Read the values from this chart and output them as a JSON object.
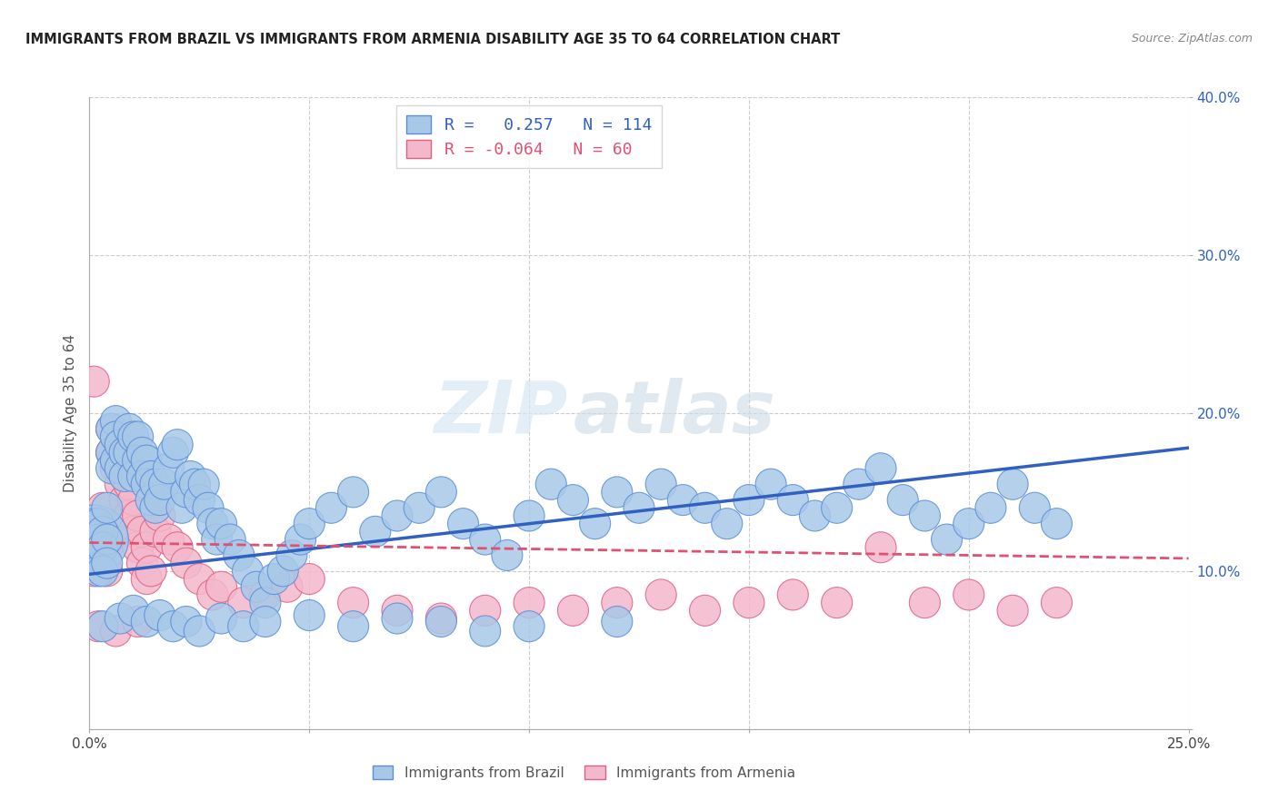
{
  "title": "IMMIGRANTS FROM BRAZIL VS IMMIGRANTS FROM ARMENIA DISABILITY AGE 35 TO 64 CORRELATION CHART",
  "source": "Source: ZipAtlas.com",
  "ylabel": "Disability Age 35 to 64",
  "x_min": 0.0,
  "x_max": 0.25,
  "y_min": 0.0,
  "y_max": 0.4,
  "brazil_color": "#a8c8e8",
  "armenia_color": "#f4b8cc",
  "brazil_edge_color": "#5b8dd9",
  "armenia_edge_color": "#e06080",
  "brazil_line_color": "#3060c0",
  "armenia_line_color": "#e05070",
  "brazil_R": 0.257,
  "brazil_N": 114,
  "armenia_R": -0.064,
  "armenia_N": 60,
  "brazil_trend_x": [
    0.0,
    0.25
  ],
  "brazil_trend_y": [
    0.098,
    0.178
  ],
  "armenia_trend_x": [
    0.0,
    0.25
  ],
  "armenia_trend_y": [
    0.118,
    0.108
  ],
  "watermark_zip": "ZIP",
  "watermark_atlas": "atlas",
  "brazil_scatter_x": [
    0.001,
    0.001,
    0.001,
    0.001,
    0.002,
    0.002,
    0.002,
    0.003,
    0.003,
    0.003,
    0.004,
    0.004,
    0.004,
    0.005,
    0.005,
    0.005,
    0.006,
    0.006,
    0.006,
    0.007,
    0.007,
    0.008,
    0.008,
    0.009,
    0.009,
    0.01,
    0.01,
    0.011,
    0.011,
    0.012,
    0.012,
    0.013,
    0.013,
    0.014,
    0.014,
    0.015,
    0.015,
    0.016,
    0.017,
    0.018,
    0.019,
    0.02,
    0.021,
    0.022,
    0.023,
    0.024,
    0.025,
    0.026,
    0.027,
    0.028,
    0.029,
    0.03,
    0.032,
    0.034,
    0.036,
    0.038,
    0.04,
    0.042,
    0.044,
    0.046,
    0.048,
    0.05,
    0.055,
    0.06,
    0.065,
    0.07,
    0.075,
    0.08,
    0.085,
    0.09,
    0.095,
    0.1,
    0.105,
    0.11,
    0.115,
    0.12,
    0.125,
    0.13,
    0.135,
    0.14,
    0.145,
    0.15,
    0.155,
    0.16,
    0.165,
    0.17,
    0.175,
    0.18,
    0.185,
    0.19,
    0.195,
    0.2,
    0.205,
    0.21,
    0.215,
    0.22,
    0.003,
    0.007,
    0.01,
    0.013,
    0.016,
    0.019,
    0.022,
    0.025,
    0.03,
    0.035,
    0.04,
    0.05,
    0.06,
    0.07,
    0.08,
    0.09,
    0.1,
    0.12
  ],
  "brazil_scatter_y": [
    0.12,
    0.13,
    0.115,
    0.11,
    0.13,
    0.12,
    0.1,
    0.125,
    0.115,
    0.1,
    0.14,
    0.12,
    0.105,
    0.19,
    0.175,
    0.165,
    0.195,
    0.185,
    0.17,
    0.18,
    0.165,
    0.175,
    0.16,
    0.19,
    0.175,
    0.185,
    0.16,
    0.185,
    0.17,
    0.175,
    0.16,
    0.17,
    0.155,
    0.16,
    0.145,
    0.155,
    0.14,
    0.145,
    0.155,
    0.165,
    0.175,
    0.18,
    0.14,
    0.15,
    0.16,
    0.155,
    0.145,
    0.155,
    0.14,
    0.13,
    0.12,
    0.13,
    0.12,
    0.11,
    0.1,
    0.09,
    0.08,
    0.095,
    0.1,
    0.11,
    0.12,
    0.13,
    0.14,
    0.15,
    0.125,
    0.135,
    0.14,
    0.15,
    0.13,
    0.12,
    0.11,
    0.135,
    0.155,
    0.145,
    0.13,
    0.15,
    0.14,
    0.155,
    0.145,
    0.14,
    0.13,
    0.145,
    0.155,
    0.145,
    0.135,
    0.14,
    0.155,
    0.165,
    0.145,
    0.135,
    0.12,
    0.13,
    0.14,
    0.155,
    0.14,
    0.13,
    0.065,
    0.07,
    0.075,
    0.068,
    0.072,
    0.065,
    0.068,
    0.062,
    0.07,
    0.065,
    0.068,
    0.072,
    0.065,
    0.07,
    0.068,
    0.062,
    0.065,
    0.068
  ],
  "brazil_scatter_size": [
    300,
    60,
    60,
    60,
    60,
    60,
    60,
    60,
    60,
    60,
    60,
    60,
    60,
    60,
    60,
    60,
    60,
    60,
    60,
    60,
    60,
    60,
    60,
    60,
    60,
    60,
    60,
    60,
    60,
    60,
    60,
    60,
    60,
    60,
    60,
    60,
    60,
    60,
    60,
    60,
    60,
    60,
    60,
    60,
    60,
    60,
    60,
    60,
    60,
    60,
    60,
    60,
    60,
    60,
    60,
    60,
    60,
    60,
    60,
    60,
    60,
    60,
    60,
    60,
    60,
    60,
    60,
    60,
    60,
    60,
    60,
    60,
    60,
    60,
    60,
    60,
    60,
    60,
    60,
    60,
    60,
    60,
    60,
    60,
    60,
    60,
    60,
    60,
    60,
    60,
    60,
    60,
    60,
    60,
    60,
    60,
    60,
    60,
    60,
    60,
    60,
    60,
    60,
    60,
    60,
    60,
    60,
    60,
    60,
    60,
    60,
    60,
    60,
    60
  ],
  "armenia_scatter_x": [
    0.001,
    0.001,
    0.001,
    0.002,
    0.002,
    0.003,
    0.003,
    0.004,
    0.004,
    0.005,
    0.005,
    0.006,
    0.006,
    0.007,
    0.007,
    0.008,
    0.008,
    0.009,
    0.009,
    0.01,
    0.01,
    0.011,
    0.011,
    0.012,
    0.012,
    0.013,
    0.013,
    0.014,
    0.015,
    0.016,
    0.018,
    0.02,
    0.022,
    0.025,
    0.028,
    0.03,
    0.035,
    0.04,
    0.045,
    0.05,
    0.06,
    0.07,
    0.08,
    0.09,
    0.1,
    0.11,
    0.12,
    0.13,
    0.14,
    0.15,
    0.16,
    0.17,
    0.18,
    0.19,
    0.2,
    0.21,
    0.22,
    0.002,
    0.006,
    0.011
  ],
  "armenia_scatter_y": [
    0.22,
    0.115,
    0.1,
    0.12,
    0.105,
    0.14,
    0.12,
    0.115,
    0.1,
    0.19,
    0.175,
    0.185,
    0.165,
    0.175,
    0.155,
    0.165,
    0.145,
    0.155,
    0.135,
    0.145,
    0.125,
    0.135,
    0.115,
    0.125,
    0.105,
    0.115,
    0.095,
    0.1,
    0.125,
    0.135,
    0.12,
    0.115,
    0.105,
    0.095,
    0.085,
    0.09,
    0.08,
    0.085,
    0.09,
    0.095,
    0.08,
    0.075,
    0.07,
    0.075,
    0.08,
    0.075,
    0.08,
    0.085,
    0.075,
    0.08,
    0.085,
    0.08,
    0.115,
    0.08,
    0.085,
    0.075,
    0.08,
    0.065,
    0.062,
    0.068
  ],
  "armenia_scatter_size": [
    60,
    60,
    60,
    60,
    60,
    60,
    60,
    60,
    60,
    60,
    60,
    60,
    60,
    60,
    60,
    60,
    60,
    60,
    60,
    60,
    60,
    60,
    60,
    60,
    60,
    60,
    60,
    60,
    60,
    60,
    60,
    60,
    60,
    60,
    60,
    60,
    60,
    60,
    60,
    60,
    60,
    60,
    60,
    60,
    60,
    60,
    60,
    60,
    60,
    60,
    60,
    60,
    60,
    60,
    60,
    60,
    60,
    60,
    60,
    60
  ]
}
